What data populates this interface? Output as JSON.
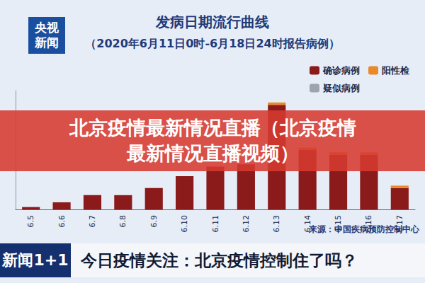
{
  "chart_data": {
    "type": "bar",
    "title": "发病日期流行曲线",
    "subtitle": "（2020年6月11日0时-6月18日24时报告病例）",
    "categories": [
      "6.5",
      "6.6",
      "6.7",
      "6.8",
      "6.9",
      "6.10",
      "6.11",
      "6.12",
      "6.13",
      "6.14",
      "6.15",
      "6.16",
      "6.17"
    ],
    "series": [
      {
        "name": "确诊病例",
        "color": "#8b1a1a",
        "values": [
          1,
          3,
          6,
          6,
          9,
          14,
          18,
          19,
          44,
          25,
          23,
          23,
          9
        ]
      },
      {
        "name": "阳性检",
        "color": "#e8892b",
        "values": [
          0,
          0,
          0,
          0,
          0,
          0,
          0,
          0,
          1,
          1,
          1,
          1,
          1
        ]
      },
      {
        "name": "疑似病例",
        "color": "#9fa3ad",
        "values": [
          0,
          0,
          0,
          0,
          0,
          0,
          0,
          0,
          0,
          0,
          0,
          0,
          0
        ]
      }
    ],
    "stacked": true,
    "ylim": [
      0,
      50
    ],
    "tick_labels": "x",
    "grid": false,
    "legend": "top-right",
    "annotations": [
      "来源：中国疾病预防控制中心"
    ]
  },
  "overlay": {
    "logo": "央视新闻",
    "banner": "北京疫情最新情况直播（北京疫情最新情况直播视频）",
    "program": "新闻1+1",
    "headline": "今日疫情关注：北京疫情控制住了吗？"
  }
}
